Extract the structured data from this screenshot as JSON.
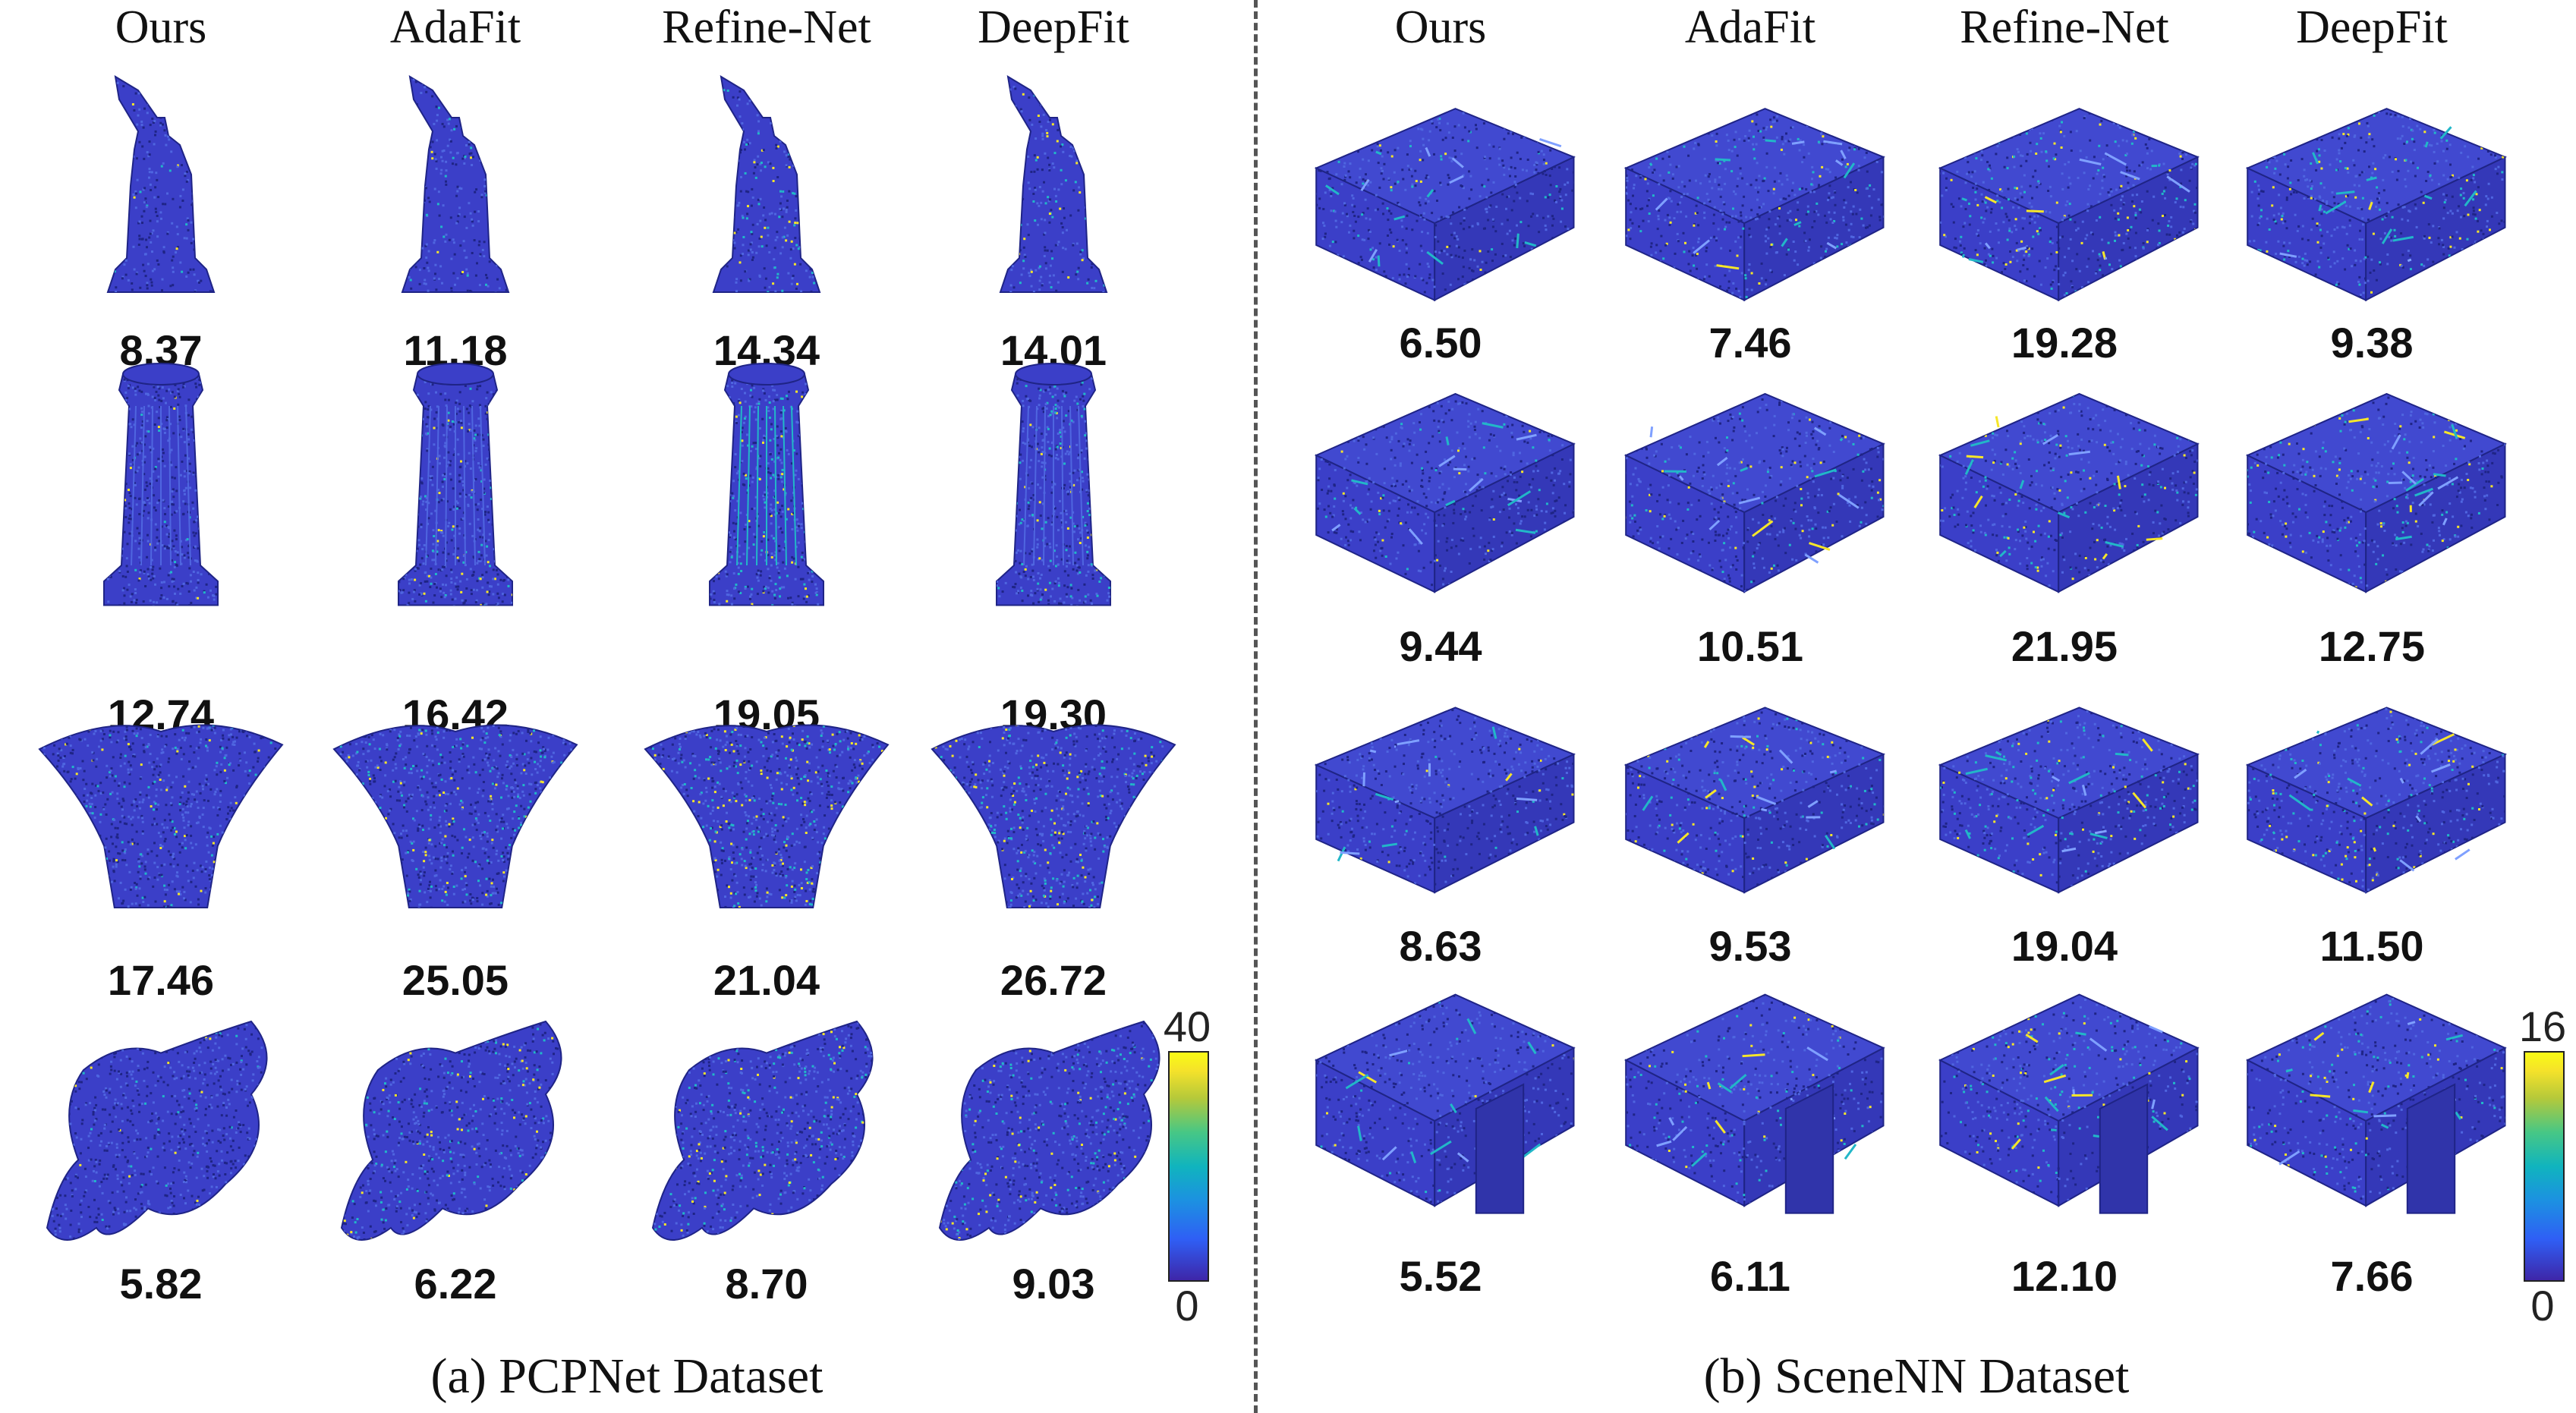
{
  "methods": [
    "Ours",
    "AdaFit",
    "Refine-Net",
    "DeepFit"
  ],
  "panels": [
    {
      "caption": "(a) PCPNet Dataset",
      "rows": [
        {
          "shape": "statue",
          "values": [
            "8.37",
            "11.18",
            "14.34",
            "14.01"
          ]
        },
        {
          "shape": "column",
          "values": [
            "12.74",
            "16.42",
            "19.05",
            "19.30"
          ]
        },
        {
          "shape": "capital",
          "values": [
            "17.46",
            "25.05",
            "21.04",
            "26.72"
          ]
        },
        {
          "shape": "flat",
          "values": [
            "5.82",
            "6.22",
            "8.70",
            "9.03"
          ]
        }
      ],
      "colorbar": {
        "max": "40",
        "min": "0"
      }
    },
    {
      "caption": "(b) SceneNN Dataset",
      "rows": [
        {
          "shape": "room",
          "values": [
            "6.50",
            "7.46",
            "19.28",
            "9.38"
          ]
        },
        {
          "shape": "room",
          "values": [
            "9.44",
            "10.51",
            "21.95",
            "12.75"
          ]
        },
        {
          "shape": "room",
          "values": [
            "8.63",
            "9.53",
            "19.04",
            "11.50"
          ]
        },
        {
          "shape": "room",
          "values": [
            "5.52",
            "6.11",
            "12.10",
            "7.66"
          ]
        }
      ],
      "colorbar": {
        "max": "16",
        "min": "0"
      }
    }
  ],
  "colors": {
    "base": "#3b3fc8",
    "dark": "#1f2486",
    "mid": "#4f66e0",
    "cyan": "#22b7c8",
    "yellow": "#f6e62a"
  }
}
